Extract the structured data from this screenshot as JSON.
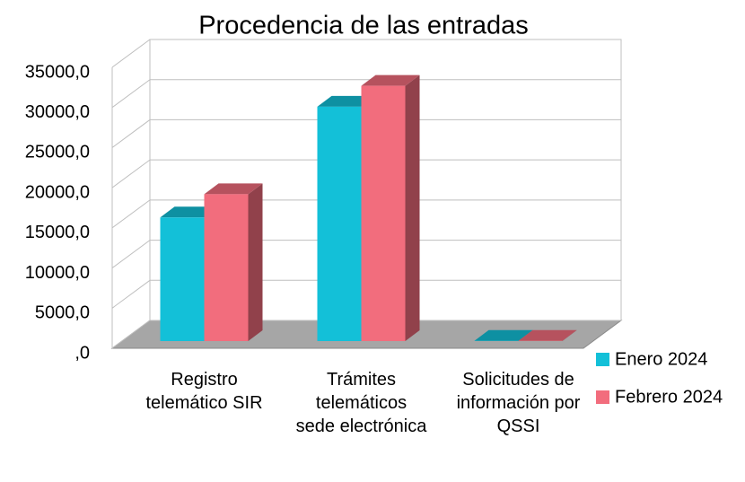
{
  "chart_data": {
    "type": "bar3d",
    "title": "Procedencia de las entradas",
    "categories": [
      "Registro telemático SIR",
      "Trámites telemáticos sede electrónica",
      "Solicitudes de información por QSSI"
    ],
    "series": [
      {
        "name": "Enero 2024",
        "color": "#13c0d8",
        "values": [
          15400,
          29200,
          30
        ]
      },
      {
        "name": "Febrero 2024",
        "color": "#f26d7d",
        "values": [
          18300,
          31800,
          30
        ]
      }
    ],
    "ylim": [
      0,
      35000
    ],
    "yticks": [
      {
        "value": 0,
        "label": ",0"
      },
      {
        "value": 5000,
        "label": "5000,0"
      },
      {
        "value": 10000,
        "label": "10000,0"
      },
      {
        "value": 15000,
        "label": "15000,0"
      },
      {
        "value": 20000,
        "label": "20000,0"
      },
      {
        "value": 25000,
        "label": "25000,0"
      },
      {
        "value": 30000,
        "label": "30000,0"
      },
      {
        "value": 35000,
        "label": "35000,0"
      }
    ],
    "grid": true,
    "legend": "right"
  }
}
